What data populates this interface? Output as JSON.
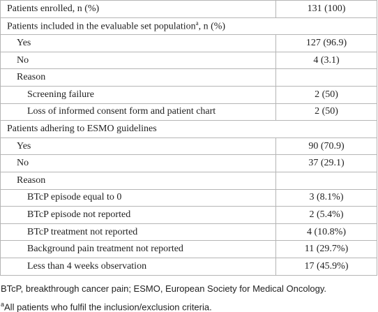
{
  "table": {
    "rows": [
      {
        "label": "Patients enrolled, n (%)",
        "value": "131 (100)",
        "level": 0
      },
      {
        "label": "Patients included in the evaluable set population",
        "sup": "a",
        "after": ", n (%)",
        "level": 0
      },
      {
        "label": "Yes",
        "value": "127 (96.9)",
        "level": 1
      },
      {
        "label": "No",
        "value": "4 (3.1)",
        "level": 1
      },
      {
        "label": "Reason",
        "value": null,
        "level": 1
      },
      {
        "label": "Screening failure",
        "value": "2 (50)",
        "level": 2
      },
      {
        "label": "Loss of informed consent form and patient chart",
        "value": "2 (50)",
        "level": 2
      },
      {
        "label": "Patients adhering to ESMO guidelines",
        "level": 0
      },
      {
        "label": "Yes",
        "value": "90 (70.9)",
        "level": 1
      },
      {
        "label": "No",
        "value": "37 (29.1)",
        "level": 1
      },
      {
        "label": "Reason",
        "value": null,
        "level": 1
      },
      {
        "label": "BTcP episode equal to 0",
        "value": "3 (8.1%)",
        "level": 2
      },
      {
        "label": "BTcP episode not reported",
        "value": "2 (5.4%)",
        "level": 2
      },
      {
        "label": "BTcP treatment not reported",
        "value": "4 (10.8%)",
        "level": 2
      },
      {
        "label": "Background pain treatment not reported",
        "value": "11 (29.7%)",
        "level": 2
      },
      {
        "label": "Less than 4 weeks observation",
        "value": "17 (45.9%)",
        "level": 2
      }
    ]
  },
  "footnotes": {
    "abbreviations": "BTcP, breakthrough cancer pain; ESMO, European Society for Medical Oncology.",
    "note_mark": "a",
    "note": "All patients who fulfil the inclusion/exclusion criteria."
  }
}
